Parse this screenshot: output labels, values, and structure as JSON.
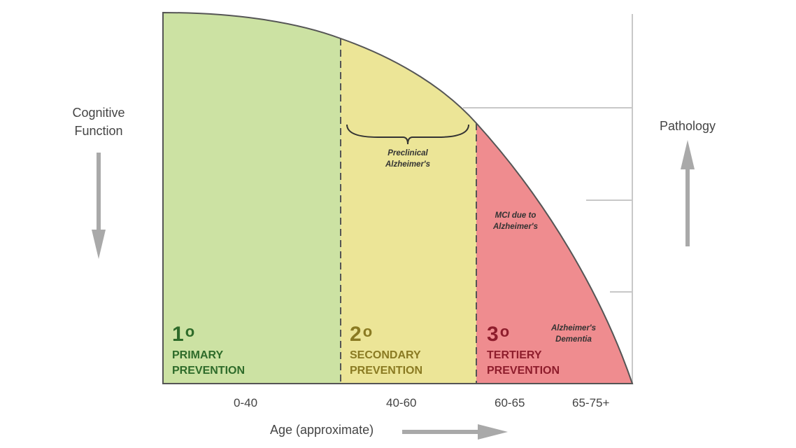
{
  "y_axis_label": {
    "line1": "Cognitive",
    "line2": "Function"
  },
  "right_axis_label": "Pathology",
  "x_axis_label": "Age (approximate)",
  "age_ranges": [
    "0-40",
    "40-60",
    "60-65",
    "65-75+"
  ],
  "stages": [
    {
      "number": "1",
      "superscript": "o",
      "line1": "PRIMARY",
      "line2": "PREVENTION",
      "fill": "#cce2a3",
      "text_color": "#2e6b2a"
    },
    {
      "number": "2",
      "superscript": "o",
      "line1": "SECONDARY",
      "line2": "PREVENTION",
      "fill": "#ece597",
      "text_color": "#8a7a22"
    },
    {
      "number": "3",
      "superscript": "o",
      "line1": "TERTIERY",
      "line2": "PREVENTION",
      "fill": "#ef8c8f",
      "text_color": "#8e1d2c"
    }
  ],
  "annotations": {
    "preclinical": {
      "line1": "Preclinical",
      "line2": "Alzheimer's"
    },
    "mci": {
      "line1": "MCI due to",
      "line2": "Alzheimer's"
    },
    "dementia": {
      "line1": "Alzheimer's",
      "line2": "Dementia"
    }
  },
  "colors": {
    "arrow": "#a9a9a9",
    "outline": "#555555",
    "gridline": "#c8c8c8"
  }
}
